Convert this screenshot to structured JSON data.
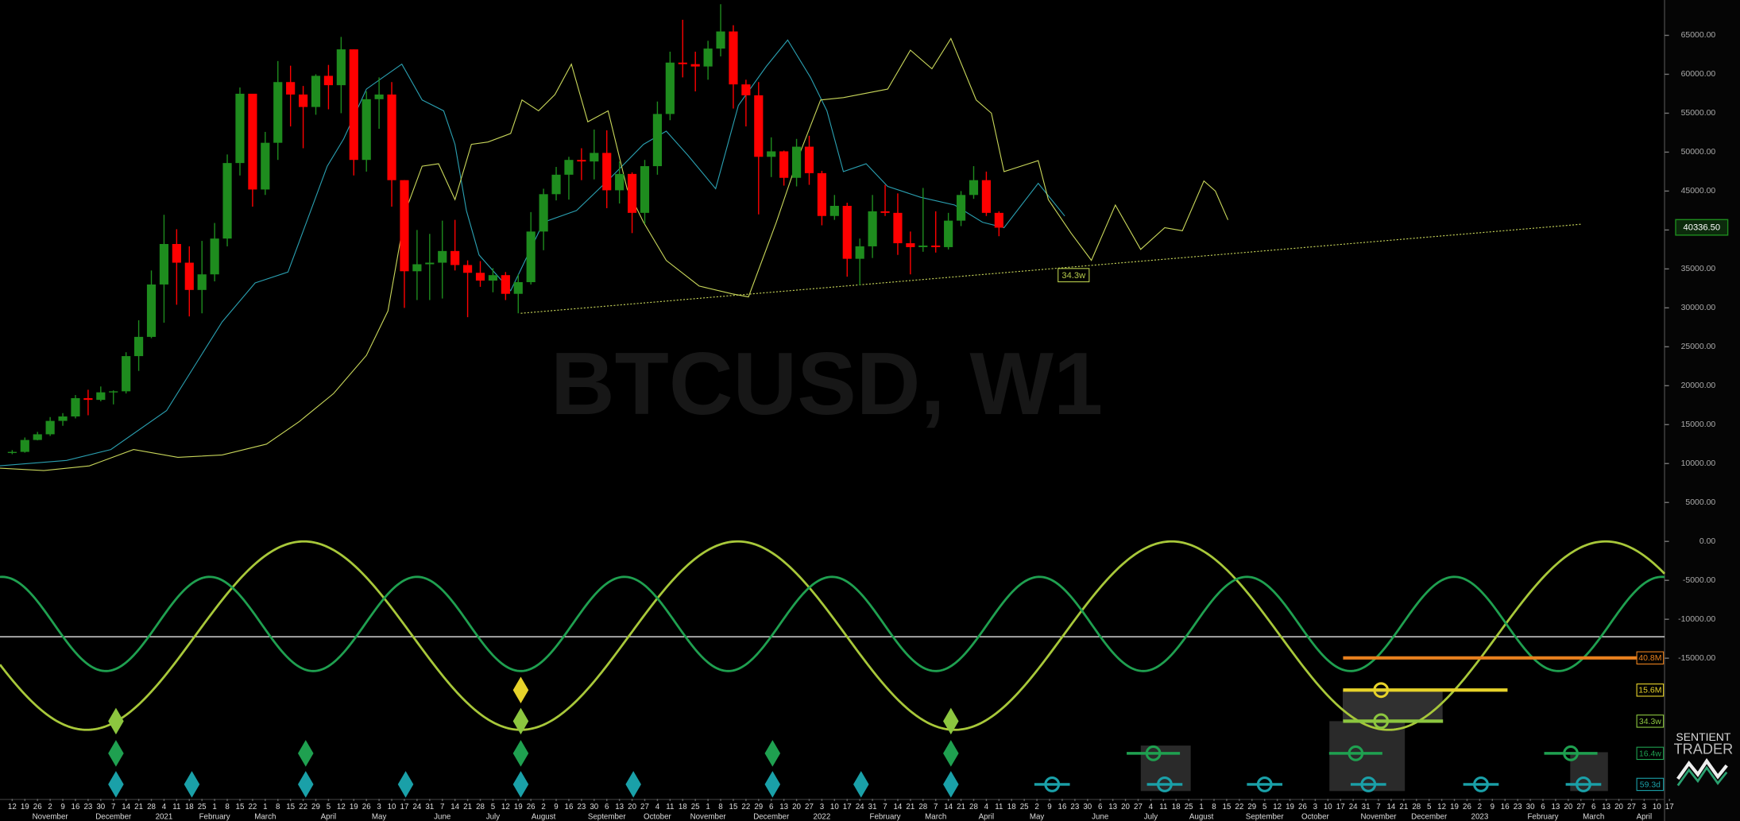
{
  "chart_data": {
    "type": "candlestick",
    "title": "BTCUSD, W1",
    "brand": [
      "SENTIENT",
      "TRADER"
    ],
    "xlim": [
      -0.965,
      130.61
    ],
    "ylim": [
      -33060,
      69540
    ],
    "yticks": [
      {
        "value": 65000,
        "label": "65000.00"
      },
      {
        "value": 60000,
        "label": "60000.00"
      },
      {
        "value": 55000,
        "label": "55000.00"
      },
      {
        "value": 50000,
        "label": "50000.00"
      },
      {
        "value": 45000,
        "label": "45000.00"
      },
      {
        "value": 40000,
        "label": "40000.00"
      },
      {
        "value": 35000,
        "label": "35000.00"
      },
      {
        "value": 30000,
        "label": "30000.00"
      },
      {
        "value": 25000,
        "label": "25000.00"
      },
      {
        "value": 20000,
        "label": "20000.00"
      },
      {
        "value": 15000,
        "label": "15000.00"
      },
      {
        "value": 10000,
        "label": "10000.00"
      },
      {
        "value": 5000,
        "label": "5000.00"
      },
      {
        "value": 0,
        "label": "0.00"
      },
      {
        "value": -5000,
        "label": "-5000.00"
      },
      {
        "value": -10000,
        "label": "-10000.00"
      },
      {
        "value": -15000,
        "label": "-15000.00"
      }
    ],
    "week_days": [
      12,
      19,
      26,
      2,
      9,
      16,
      23,
      30,
      7,
      14,
      21,
      28,
      4,
      11,
      18,
      25,
      1,
      8,
      15,
      22,
      1,
      8,
      15,
      22,
      29,
      5,
      12,
      19,
      26,
      3,
      10,
      17,
      24,
      31,
      7,
      14,
      21,
      28,
      5,
      12,
      19,
      26,
      2,
      9,
      16,
      23,
      30,
      6,
      13,
      20,
      27,
      4,
      11,
      18,
      25,
      1,
      8,
      15,
      22,
      29,
      6,
      13,
      20,
      27,
      3,
      10,
      17,
      24,
      31,
      7,
      14,
      21,
      28,
      7,
      14,
      21,
      28,
      4,
      11,
      18,
      25,
      2,
      9,
      16,
      23,
      30,
      6,
      13,
      20,
      27,
      4,
      11,
      18,
      25,
      1,
      8,
      15,
      22,
      29,
      5,
      12,
      19,
      26,
      3,
      10,
      17,
      24,
      31,
      7,
      14,
      21,
      28,
      5,
      12,
      19,
      26,
      2,
      9,
      16,
      23,
      30,
      6,
      13,
      20,
      27,
      6,
      13,
      20,
      27,
      3,
      10,
      17
    ],
    "month_labels": [
      {
        "value": 3,
        "label": "November"
      },
      {
        "value": 8,
        "label": "December"
      },
      {
        "value": 12,
        "label": "2021"
      },
      {
        "value": 16,
        "label": "February"
      },
      {
        "value": 20,
        "label": "March"
      },
      {
        "value": 25,
        "label": "April"
      },
      {
        "value": 29,
        "label": "May"
      },
      {
        "value": 34,
        "label": "June"
      },
      {
        "value": 38,
        "label": "July"
      },
      {
        "value": 42,
        "label": "August"
      },
      {
        "value": 47,
        "label": "September"
      },
      {
        "value": 51,
        "label": "October"
      },
      {
        "value": 55,
        "label": "November"
      },
      {
        "value": 60,
        "label": "December"
      },
      {
        "value": 64,
        "label": "2022"
      },
      {
        "value": 69,
        "label": "February"
      },
      {
        "value": 73,
        "label": "March"
      },
      {
        "value": 77,
        "label": "April"
      },
      {
        "value": 81,
        "label": "May"
      },
      {
        "value": 86,
        "label": "June"
      },
      {
        "value": 90,
        "label": "July"
      },
      {
        "value": 94,
        "label": "August"
      },
      {
        "value": 99,
        "label": "September"
      },
      {
        "value": 103,
        "label": "October"
      },
      {
        "value": 108,
        "label": "November"
      },
      {
        "value": 112,
        "label": "December"
      },
      {
        "value": 116,
        "label": "2023"
      },
      {
        "value": 121,
        "label": "February"
      },
      {
        "value": 125,
        "label": "March"
      },
      {
        "value": 129,
        "label": "April"
      }
    ],
    "up_color": "#1e8c1e",
    "down_color": "#ff0000",
    "candles": {
      "open": [
        11380,
        11500,
        13030,
        13760,
        15480,
        16050,
        18400,
        18180,
        19150,
        19280,
        23800,
        26270,
        33000,
        38200,
        35800,
        32300,
        34300,
        38900,
        48600,
        57500,
        45200,
        51200,
        59000,
        57400,
        55800,
        59800,
        58600,
        63200,
        49000,
        56800,
        57400,
        46400,
        34700,
        35600,
        35800,
        37300,
        35500,
        34500,
        33500,
        34200,
        31800,
        33300,
        39800,
        44600,
        47100,
        49000,
        48800,
        49900,
        45100,
        47200,
        42200,
        48200,
        54900,
        61500,
        61300,
        61000,
        63300,
        65500,
        58700,
        57300,
        49400,
        50100,
        46700,
        50700,
        47300,
        41800,
        43100,
        36300,
        37900,
        42400,
        42200,
        38300,
        37800,
        38000,
        37800,
        41200,
        44500,
        46400,
        42200
      ],
      "high": [
        11730,
        13350,
        14070,
        15970,
        16480,
        18800,
        19480,
        19900,
        19400,
        24300,
        28400,
        34800,
        41950,
        40100,
        37900,
        38600,
        40900,
        49700,
        58300,
        57500,
        52600,
        61700,
        61100,
        58500,
        60000,
        61200,
        64800,
        63200,
        57800,
        59600,
        59000,
        46400,
        40000,
        39500,
        41200,
        41300,
        36100,
        36000,
        35100,
        34600,
        34300,
        42300,
        45300,
        48100,
        49400,
        50500,
        52900,
        52800,
        48800,
        47400,
        49000,
        56500,
        62900,
        67000,
        62900,
        64300,
        69000,
        66300,
        59300,
        59000,
        51900,
        50200,
        51700,
        52100,
        47600,
        44500,
        43500,
        38900,
        44500,
        45800,
        44700,
        39800,
        45400,
        42400,
        42200,
        45000,
        48200,
        47500,
        42400
      ],
      "low": [
        11200,
        11400,
        12980,
        13550,
        14850,
        15800,
        16200,
        18000,
        17600,
        19000,
        21900,
        26100,
        28100,
        30400,
        28900,
        29300,
        33400,
        37900,
        47000,
        43000,
        44500,
        49000,
        53300,
        50500,
        54800,
        55500,
        55000,
        47000,
        47500,
        53000,
        43000,
        30000,
        31000,
        31000,
        31200,
        34800,
        28800,
        32700,
        32000,
        31000,
        29300,
        33000,
        37400,
        43800,
        43900,
        46400,
        46500,
        42800,
        43400,
        39600,
        40800,
        47100,
        54100,
        59600,
        57800,
        59300,
        62300,
        55600,
        53300,
        42000,
        46800,
        45700,
        45600,
        45800,
        40600,
        41300,
        34000,
        32900,
        36400,
        41800,
        36800,
        34300,
        37200,
        37100,
        37500,
        40500,
        44000,
        41800,
        39200
      ],
      "close": [
        11500,
        13030,
        13760,
        15480,
        16050,
        18400,
        18180,
        19150,
        19280,
        23800,
        26270,
        33000,
        38200,
        35800,
        32300,
        34300,
        38900,
        48600,
        57500,
        45200,
        51200,
        59000,
        57400,
        55800,
        59800,
        58600,
        63200,
        49000,
        56800,
        57400,
        46400,
        34700,
        35600,
        35800,
        37300,
        35500,
        34500,
        33500,
        34200,
        31800,
        33300,
        39800,
        44600,
        47100,
        49000,
        48800,
        49900,
        45100,
        47200,
        42200,
        48200,
        54900,
        61500,
        61300,
        61000,
        63300,
        65500,
        58700,
        57300,
        49400,
        50100,
        46700,
        50700,
        47300,
        41800,
        43100,
        36300,
        37900,
        42400,
        42200,
        38300,
        37800,
        38000,
        37800,
        41200,
        44500,
        46400,
        42200,
        40300
      ]
    },
    "lines": [
      {
        "color": "#2a9fb0",
        "x": [
          -1.0,
          4.3,
          7.8,
          12.2,
          16.6,
          19.2,
          21.8,
          24.9,
          26.2,
          28.0,
          29.3,
          30.8,
          32.4,
          34.1,
          35.0,
          35.9,
          36.9,
          39.4,
          42.0,
          44.6,
          47.3,
          49.9,
          51.7,
          53.4,
          55.6,
          57.4,
          59.6,
          61.3,
          63.1,
          64.4,
          65.7,
          67.5,
          69.2,
          71.8,
          74.5,
          76.7,
          78.4,
          81.1,
          83.2
        ],
        "values": [
          9700,
          10400,
          11800,
          16800,
          28200,
          33200,
          34600,
          48200,
          51700,
          58100,
          59600,
          61300,
          56700,
          55300,
          51000,
          42500,
          36800,
          32200,
          41000,
          42500,
          46700,
          51000,
          52700,
          49600,
          45300,
          56000,
          61000,
          64400,
          59600,
          55300,
          47500,
          48500,
          45600,
          44200,
          43200,
          41000,
          40300,
          46000,
          41800
        ]
      },
      {
        "color": "#c8d65a",
        "x": [
          -1.0,
          2.5,
          6.1,
          9.6,
          13.1,
          16.6,
          20.1,
          22.7,
          25.4,
          28.0,
          29.7,
          31.1,
          32.4,
          33.7,
          35.0,
          36.3,
          37.6,
          39.4,
          40.3,
          41.6,
          42.9,
          44.2,
          45.5,
          47.1,
          48.6,
          49.9,
          51.7,
          54.3,
          56.9,
          58.2,
          60.4,
          62.2,
          63.9,
          65.7,
          69.2,
          71.0,
          72.7,
          74.2,
          76.2,
          77.4,
          78.4,
          81.1,
          81.9,
          83.7,
          85.3,
          87.2,
          89.2,
          91.1,
          92.5,
          94.2,
          95.1,
          96.1
        ],
        "values": [
          9400,
          9100,
          9700,
          11800,
          10800,
          11100,
          12500,
          15400,
          19000,
          23900,
          29600,
          42500,
          48200,
          48500,
          43900,
          51000,
          51300,
          52400,
          56700,
          55300,
          57400,
          61300,
          53900,
          55300,
          45300,
          41000,
          36100,
          32800,
          31800,
          31400,
          41000,
          49600,
          56700,
          57000,
          58100,
          63100,
          60700,
          64600,
          56700,
          55000,
          47500,
          48900,
          43900,
          39600,
          36100,
          43200,
          37500,
          40300,
          39900,
          46300,
          45000,
          41300
        ]
      }
    ],
    "trendline": {
      "color": "#c8d65a",
      "x": [
        40.2,
        124.1
      ],
      "values": [
        29300,
        40750
      ]
    },
    "annotation": {
      "label": "34.3w",
      "x": 83.9,
      "value": 34200,
      "color": "#b5c94a"
    },
    "last_price": {
      "value": 40336.5,
      "label": "40336.50",
      "color": "#1e8c1e"
    },
    "reference_line": -12250,
    "cycles": [
      {
        "color": "#a8c83a",
        "period": 34.3,
        "trough": 40.2,
        "center": -12100,
        "amplitude": 12100
      },
      {
        "color": "#1fa050",
        "period": 16.4,
        "trough": 40.2,
        "center": -10600,
        "amplitude": 6050
      }
    ],
    "cycle_rows": [
      {
        "label": "40.8M",
        "color": "#e8801e",
        "span": [
          105.2,
          128.4
        ],
        "projections": [],
        "diamonds": []
      },
      {
        "label": "15.6M",
        "color": "#e6d22a",
        "span": [
          105.2,
          118.2
        ],
        "projections": [
          108.2
        ],
        "diamonds": [
          40.2
        ]
      },
      {
        "label": "34.3w",
        "color": "#8cc63f",
        "span": [
          105.2,
          113.1
        ],
        "projections": [
          108.2
        ],
        "diamonds": [
          8.2,
          40.2,
          74.2
        ]
      },
      {
        "label": "16.4w",
        "color": "#1fa050",
        "projections": [
          90.2,
          106.2,
          123.2
        ],
        "diamonds": [
          8.2,
          23.2,
          40.2,
          60.1,
          74.2
        ]
      },
      {
        "label": "59.3d",
        "color": "#1aa0a8",
        "projections": [
          82.2,
          91.1,
          99.0,
          107.2,
          116.1,
          124.2
        ],
        "diamonds": [
          8.2,
          14.2,
          23.2,
          31.1,
          40.2,
          49.1,
          60.1,
          67.1,
          74.2
        ]
      }
    ]
  }
}
